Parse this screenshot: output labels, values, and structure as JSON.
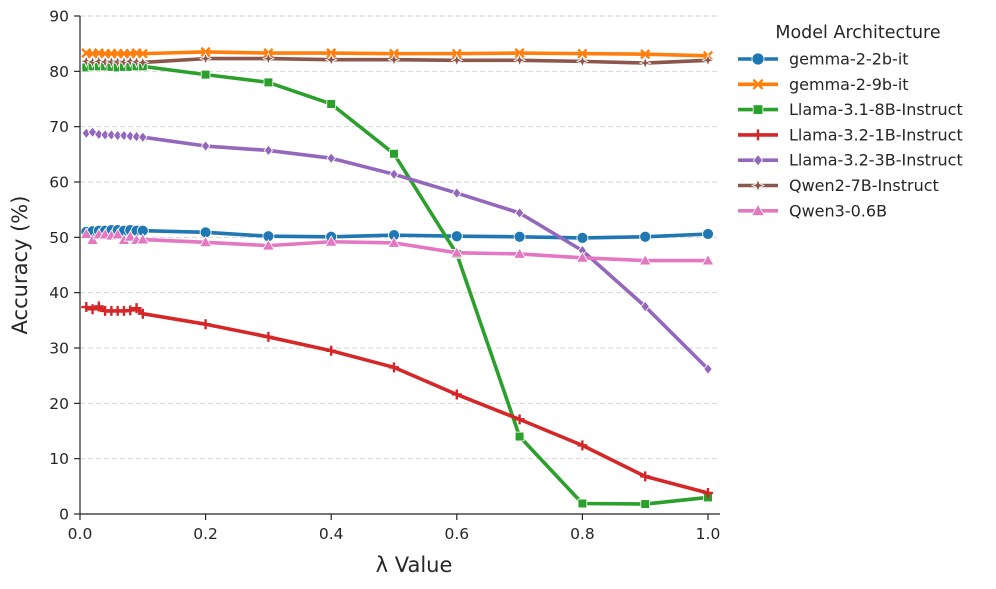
{
  "chart_data": {
    "type": "line",
    "title": "",
    "xlabel": "λ Value",
    "ylabel": "Accuracy (%)",
    "xlim": [
      0.0,
      1.0
    ],
    "ylim": [
      0,
      90
    ],
    "x_ticks": [
      "0.0",
      "0.2",
      "0.4",
      "0.6",
      "0.8",
      "1.0"
    ],
    "y_ticks": [
      "0",
      "10",
      "20",
      "30",
      "40",
      "50",
      "60",
      "70",
      "80",
      "90"
    ],
    "grid": "horizontal-dashed",
    "legend": {
      "title": "Model Architecture",
      "placement": "outside-top-right"
    },
    "x": [
      0.01,
      0.02,
      0.03,
      0.04,
      0.05,
      0.06,
      0.07,
      0.08,
      0.09,
      0.1,
      0.2,
      0.3,
      0.4,
      0.5,
      0.6,
      0.7,
      0.8,
      0.9,
      1.0
    ],
    "series": [
      {
        "name": "gemma-2-2b-it",
        "color": "#1f77b4",
        "marker": "circle",
        "values": [
          51.0,
          51.1,
          51.2,
          51.2,
          51.3,
          51.3,
          51.2,
          51.3,
          51.2,
          51.2,
          50.9,
          50.2,
          50.1,
          50.4,
          50.2,
          50.1,
          49.9,
          50.1,
          50.6
        ]
      },
      {
        "name": "gemma-2-9b-it",
        "color": "#ff7f0e",
        "marker": "x",
        "values": [
          83.3,
          83.2,
          83.3,
          83.2,
          83.2,
          83.2,
          83.2,
          83.2,
          83.3,
          83.2,
          83.5,
          83.3,
          83.3,
          83.2,
          83.2,
          83.3,
          83.2,
          83.1,
          82.8
        ]
      },
      {
        "name": "Llama-3.1-8B-Instruct",
        "color": "#2ca02c",
        "marker": "square",
        "values": [
          80.7,
          80.9,
          80.9,
          80.9,
          80.8,
          80.7,
          80.8,
          80.8,
          80.9,
          80.9,
          79.4,
          78.0,
          74.1,
          65.1,
          47.0,
          14.0,
          1.9,
          1.8,
          3.0
        ]
      },
      {
        "name": "Llama-3.2-1B-Instruct",
        "color": "#d62728",
        "marker": "plus",
        "values": [
          37.4,
          37.0,
          37.5,
          36.7,
          36.7,
          36.7,
          36.7,
          36.8,
          37.2,
          36.2,
          34.3,
          32.0,
          29.5,
          26.5,
          21.6,
          17.1,
          12.4,
          6.8,
          3.8
        ]
      },
      {
        "name": "Llama-3.2-3B-Instruct",
        "color": "#9467bd",
        "marker": "diamond",
        "values": [
          68.8,
          69.0,
          68.6,
          68.5,
          68.5,
          68.4,
          68.4,
          68.3,
          68.2,
          68.1,
          66.5,
          65.7,
          64.3,
          61.4,
          58.0,
          54.4,
          47.6,
          37.5,
          26.2
        ]
      },
      {
        "name": "Qwen2-7B-Instruct",
        "color": "#8c564b",
        "marker": "star",
        "values": [
          81.8,
          81.7,
          81.8,
          81.7,
          81.7,
          81.7,
          81.7,
          81.8,
          81.7,
          81.6,
          82.3,
          82.3,
          82.1,
          82.1,
          82.0,
          82.0,
          81.8,
          81.5,
          82.0
        ]
      },
      {
        "name": "Qwen3-0.6B",
        "color": "#e377c2",
        "marker": "triangle",
        "values": [
          50.6,
          49.5,
          50.5,
          50.5,
          50.3,
          50.5,
          49.5,
          50.1,
          49.5,
          49.6,
          49.1,
          48.5,
          49.2,
          49.0,
          47.2,
          47.0,
          46.3,
          45.8,
          45.8
        ]
      }
    ]
  }
}
